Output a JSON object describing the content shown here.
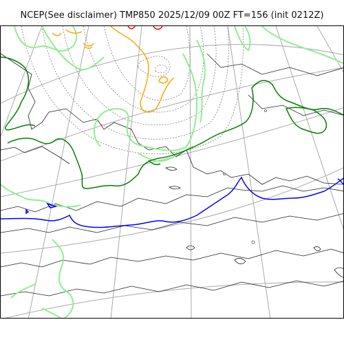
{
  "map": {
    "title": "NCEP(See disclaimer) TMP850 2025/12/09 00Z FT=156 (init 0212Z)",
    "colors": {
      "background": "#ffffff",
      "coastline": "#222222",
      "graticule": "#a9a9a9",
      "height_contour": "#555555",
      "isotherm_cold": "#90ee90",
      "isotherm_green": "#008000",
      "isotherm_freezing": "#0000ff",
      "isotherm_orange": "#ffa500",
      "isotherm_red": "#ff0000"
    }
  }
}
